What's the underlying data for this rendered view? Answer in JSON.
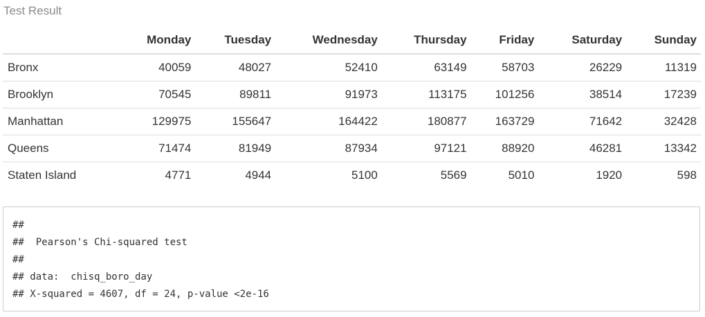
{
  "caption": "Test Result",
  "table": {
    "columns": [
      "",
      "Monday",
      "Tuesday",
      "Wednesday",
      "Thursday",
      "Friday",
      "Saturday",
      "Sunday"
    ],
    "rows": [
      {
        "label": "Bronx",
        "values": [
          "40059",
          "48027",
          "52410",
          "63149",
          "58703",
          "26229",
          "11319"
        ]
      },
      {
        "label": "Brooklyn",
        "values": [
          "70545",
          "89811",
          "91973",
          "113175",
          "101256",
          "38514",
          "17239"
        ]
      },
      {
        "label": "Manhattan",
        "values": [
          "129975",
          "155647",
          "164422",
          "180877",
          "163729",
          "71642",
          "32428"
        ]
      },
      {
        "label": "Queens",
        "values": [
          "71474",
          "81949",
          "87934",
          "97121",
          "88920",
          "46281",
          "13342"
        ]
      },
      {
        "label": "Staten Island",
        "values": [
          "4771",
          "4944",
          "5100",
          "5569",
          "5010",
          "1920",
          "598"
        ]
      }
    ]
  },
  "output": {
    "lines": [
      "##",
      "##  Pearson's Chi-squared test",
      "##",
      "## data:  chisq_boro_day",
      "## X-squared = 4607, df = 24, p-value <2e-16"
    ]
  }
}
